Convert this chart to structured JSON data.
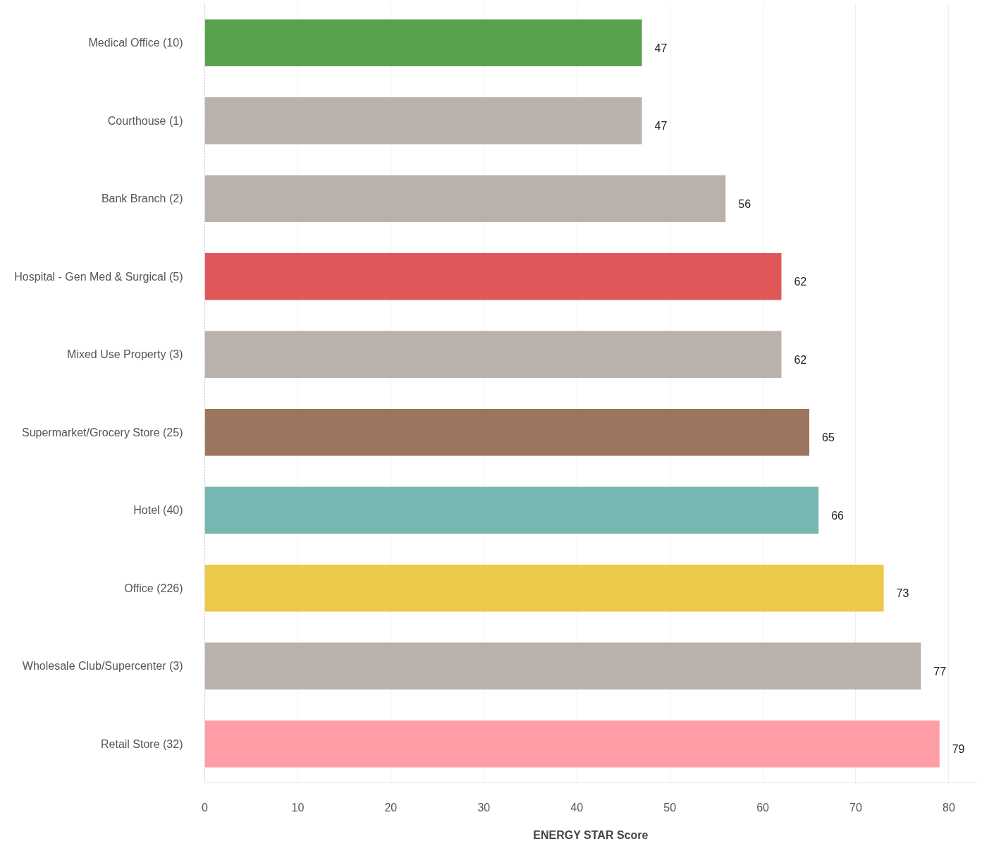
{
  "chart_data": {
    "type": "bar",
    "orientation": "horizontal",
    "xlabel": "ENERGY STAR Score",
    "categories": [
      "Medical Office (10)",
      "Courthouse (1)",
      "Bank Branch (2)",
      "Hospital - Gen Med & Surgical (5)",
      "Mixed Use Property (3)",
      "Supermarket/Grocery Store (25)",
      "Hotel (40)",
      "Office (226)",
      "Wholesale Club/Supercenter (3)",
      "Retail Store (32)"
    ],
    "values": [
      47,
      47,
      56,
      62,
      62,
      65,
      66,
      73,
      77,
      79
    ],
    "colors": [
      "#59a14f",
      "#bab0ac",
      "#bab0ac",
      "#e15759",
      "#bab0ac",
      "#9c755f",
      "#76b7b2",
      "#edc948",
      "#bab0ac",
      "#ff9da7"
    ],
    "xlim": [
      0,
      83
    ],
    "xticks": [
      0,
      10,
      20,
      30,
      40,
      50,
      60,
      70,
      80
    ],
    "grid": "x",
    "data_labels": true
  }
}
